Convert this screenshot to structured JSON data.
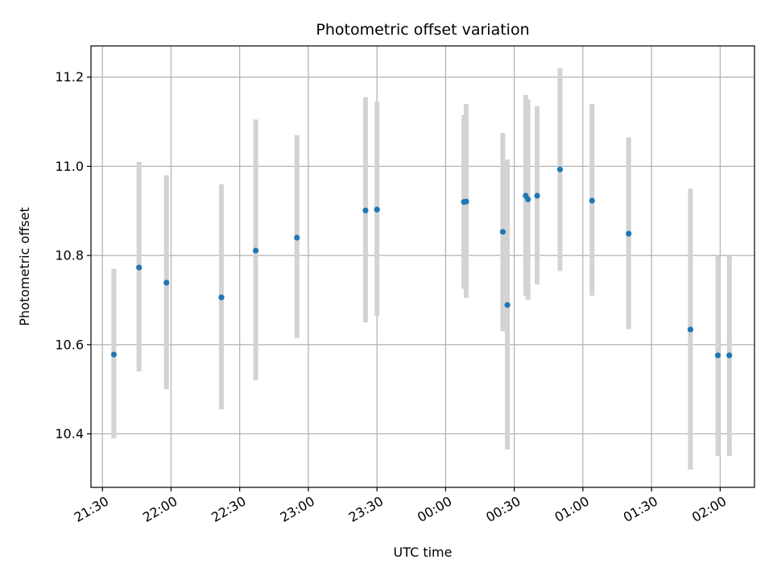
{
  "chart_data": {
    "type": "scatter",
    "title": "Photometric offset variation",
    "xlabel": "UTC time",
    "ylabel": "Photometric offset",
    "grid": true,
    "x_unit": "UTC time (HH:MM), spanning 21:30 to 02:00 on the following day",
    "xlim": [
      "21:25",
      "02:15"
    ],
    "ylim": [
      10.28,
      11.27
    ],
    "x_ticks": [
      "21:30",
      "22:00",
      "22:30",
      "23:00",
      "23:30",
      "00:00",
      "00:30",
      "01:00",
      "01:30",
      "02:00"
    ],
    "y_ticks": [
      10.4,
      10.6,
      10.8,
      11.0,
      11.2
    ],
    "y_tick_labels": [
      "10.4",
      "10.6",
      "10.8",
      "11.0",
      "11.2"
    ],
    "colors": {
      "point": "#1f77b4",
      "errorbar": "#d3d3d3",
      "grid": "#b0b0b0"
    },
    "series": [
      {
        "points": [
          {
            "x": "21:35",
            "y": 10.578,
            "ylow": 10.39,
            "yhigh": 10.77
          },
          {
            "x": "21:46",
            "y": 10.773,
            "ylow": 10.54,
            "yhigh": 11.01
          },
          {
            "x": "21:58",
            "y": 10.739,
            "ylow": 10.5,
            "yhigh": 10.98
          },
          {
            "x": "22:22",
            "y": 10.706,
            "ylow": 10.455,
            "yhigh": 10.96
          },
          {
            "x": "22:37",
            "y": 10.811,
            "ylow": 10.52,
            "yhigh": 11.105
          },
          {
            "x": "22:55",
            "y": 10.84,
            "ylow": 10.615,
            "yhigh": 11.07
          },
          {
            "x": "23:25",
            "y": 10.901,
            "ylow": 10.65,
            "yhigh": 11.155
          },
          {
            "x": "23:30",
            "y": 10.903,
            "ylow": 10.665,
            "yhigh": 11.145
          },
          {
            "x": "00:08",
            "y": 10.92,
            "ylow": 10.725,
            "yhigh": 11.115
          },
          {
            "x": "00:09",
            "y": 10.921,
            "ylow": 10.705,
            "yhigh": 11.14
          },
          {
            "x": "00:25",
            "y": 10.853,
            "ylow": 10.63,
            "yhigh": 11.075
          },
          {
            "x": "00:27",
            "y": 10.689,
            "ylow": 10.365,
            "yhigh": 11.015
          },
          {
            "x": "00:35",
            "y": 10.934,
            "ylow": 10.71,
            "yhigh": 11.16
          },
          {
            "x": "00:36",
            "y": 10.926,
            "ylow": 10.7,
            "yhigh": 11.15
          },
          {
            "x": "00:40",
            "y": 10.934,
            "ylow": 10.735,
            "yhigh": 11.135
          },
          {
            "x": "00:50",
            "y": 10.993,
            "ylow": 10.765,
            "yhigh": 11.22
          },
          {
            "x": "01:04",
            "y": 10.923,
            "ylow": 10.71,
            "yhigh": 11.14
          },
          {
            "x": "01:20",
            "y": 10.849,
            "ylow": 10.635,
            "yhigh": 11.065
          },
          {
            "x": "01:47",
            "y": 10.634,
            "ylow": 10.32,
            "yhigh": 10.95
          },
          {
            "x": "01:59",
            "y": 10.576,
            "ylow": 10.35,
            "yhigh": 10.8
          },
          {
            "x": "02:04",
            "y": 10.576,
            "ylow": 10.35,
            "yhigh": 10.8
          }
        ]
      }
    ]
  }
}
